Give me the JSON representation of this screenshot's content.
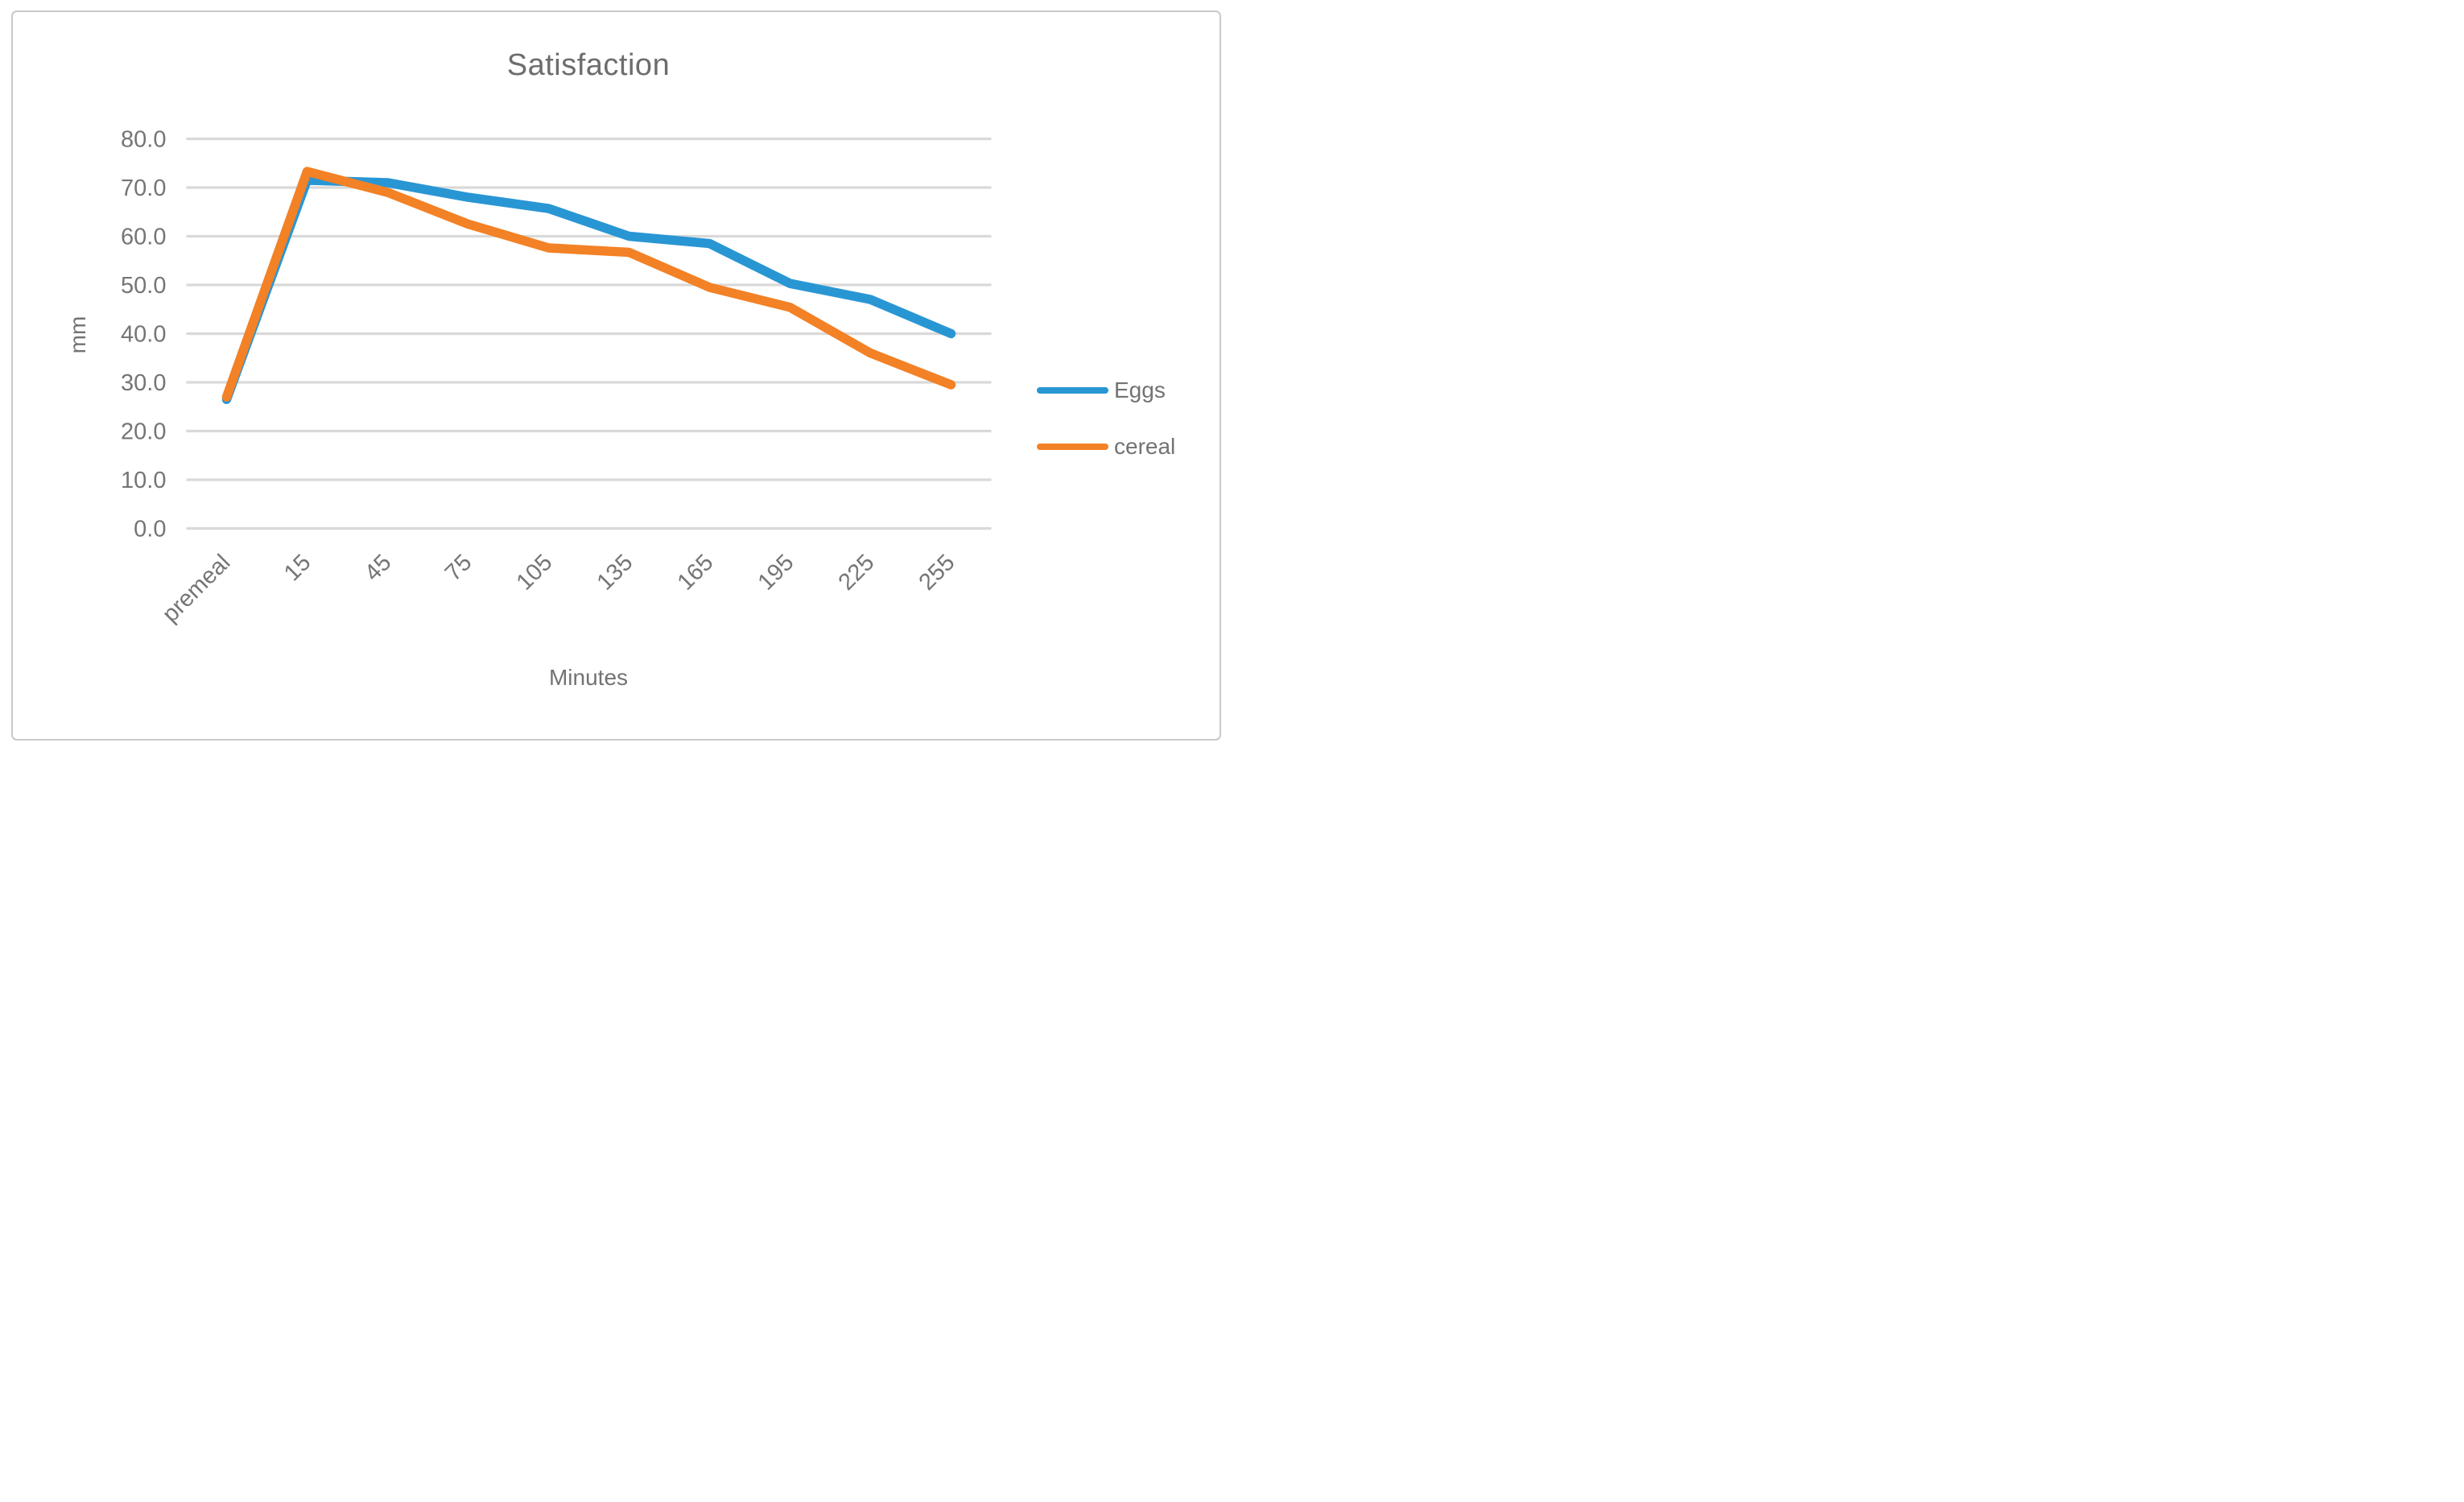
{
  "chart_data": {
    "type": "line",
    "title": "Satisfaction",
    "xlabel": "Minutes",
    "ylabel": "mm",
    "categories": [
      "premeal",
      "15",
      "45",
      "75",
      "105",
      "135",
      "165",
      "195",
      "225",
      "255"
    ],
    "series": [
      {
        "name": "Eggs",
        "color": "#2996D4",
        "values": [
          26.5,
          71.5,
          71.0,
          68.0,
          65.7,
          60.0,
          58.5,
          50.3,
          47.0,
          40.0
        ]
      },
      {
        "name": "cereal",
        "color": "#F38125",
        "values": [
          27.0,
          73.3,
          69.0,
          62.5,
          57.6,
          56.7,
          49.5,
          45.4,
          36.0,
          29.5
        ]
      }
    ],
    "ylim": [
      0,
      80
    ],
    "ytick_step": 10,
    "ytick_decimals": 1,
    "grid": "horizontal-only",
    "legend_position": "right",
    "colors": {
      "gridline": "#d9d9d9",
      "tick_label_text": "#757575",
      "title_text": "#6d6d6d",
      "border": "#c9c9c9",
      "background": "#ffffff"
    }
  }
}
